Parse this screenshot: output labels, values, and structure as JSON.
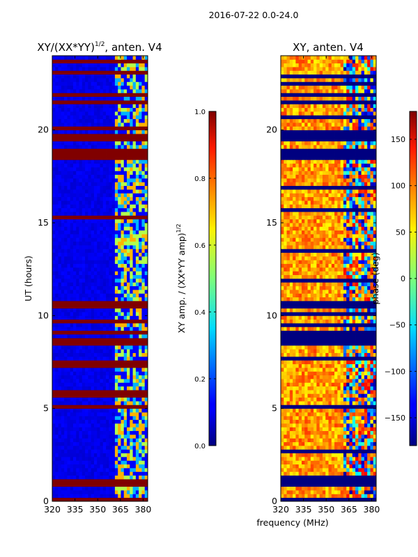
{
  "suptitle": "2016-07-22 0.0-24.0",
  "shared_xlabel": "frequency (MHz)",
  "chart_data": [
    {
      "type": "heatmap",
      "id": "ratio",
      "title_main": "XY/(XX*YY)",
      "title_exp": "1/2",
      "title_suffix": ", anten. V4",
      "ylabel": "UT (hours)",
      "xlim": [
        320,
        383
      ],
      "ylim": [
        0,
        24
      ],
      "xticks": [
        320,
        335,
        350,
        365,
        380
      ],
      "yticks": [
        0,
        5,
        10,
        15,
        20
      ],
      "colorbar": {
        "label_main": "XY amp. / (XX*YY amp)",
        "label_exp": "1/2",
        "range": [
          0.0,
          1.0
        ],
        "ticks": [
          0.0,
          0.2,
          0.4,
          0.6,
          0.8,
          1.0
        ],
        "tick_labels": [
          "0.0",
          "0.2",
          "0.4",
          "0.6",
          "0.8",
          "1.0"
        ],
        "colormap": "jet"
      },
      "description_values": {
        "background_level": 0.08,
        "flagged_level": 1.0,
        "rfi_band_start_mhz": 360,
        "rfi_levels": [
          0.3,
          0.55,
          0.7
        ]
      },
      "flagged_hours": [
        [
          0.0,
          0.15
        ],
        [
          0.8,
          1.05
        ],
        [
          8.4,
          8.7
        ],
        [
          10.5,
          10.8
        ],
        [
          18.4,
          18.9
        ],
        [
          19.5,
          19.8
        ],
        [
          21.9,
          22.0
        ]
      ]
    },
    {
      "type": "heatmap",
      "id": "phase",
      "title_main": "XY, anten. V4",
      "xlim": [
        320,
        383
      ],
      "ylim": [
        0,
        24
      ],
      "xticks": [
        320,
        335,
        350,
        365,
        380
      ],
      "yticks": [
        0,
        5,
        10,
        15,
        20
      ],
      "colorbar": {
        "label_main": "phase (deg)",
        "range": [
          -180,
          180
        ],
        "ticks": [
          -150,
          -100,
          -50,
          0,
          50,
          100,
          150
        ],
        "tick_labels": [
          "−150",
          "−100",
          "−50",
          "0",
          "50",
          "100",
          "150"
        ],
        "colormap": "jet"
      },
      "description_values": {
        "typical_phase_deg": 80,
        "flagged_phase_deg": -180,
        "rfi_band_start_mhz": 360
      },
      "flagged_hours": [
        [
          0.0,
          0.15
        ],
        [
          0.8,
          1.05
        ],
        [
          8.4,
          8.7
        ],
        [
          10.5,
          10.8
        ],
        [
          18.4,
          18.9
        ],
        [
          19.5,
          19.8
        ],
        [
          21.9,
          22.0
        ]
      ]
    }
  ]
}
